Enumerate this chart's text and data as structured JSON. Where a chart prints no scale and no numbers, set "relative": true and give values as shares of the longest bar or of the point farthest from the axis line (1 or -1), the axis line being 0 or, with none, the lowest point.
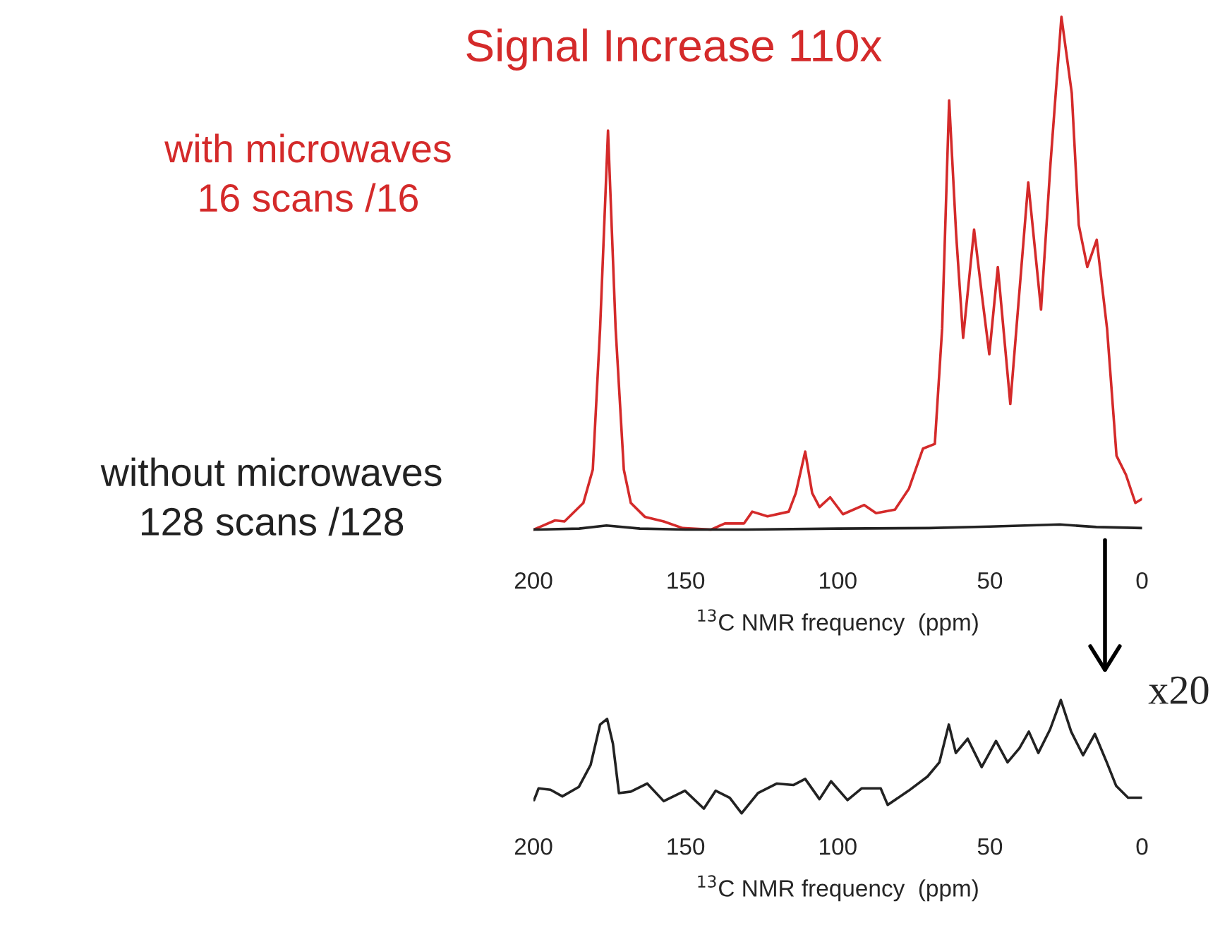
{
  "chart_data": [
    {
      "type": "line",
      "title": "Signal Increase 110x",
      "xlabel": "$^{13}$C NMR frequency  (ppm)",
      "relative": true,
      "xlim": [
        200,
        0
      ],
      "xticks": [
        200,
        150,
        100,
        50,
        0
      ],
      "tick_labels": "x",
      "grid": false,
      "legend": false,
      "series": [
        {
          "name": "with microwaves\n16 scans /16",
          "color": "#d42a2a",
          "x": [
            199.9,
            192.9,
            189.8,
            183.6,
            180.5,
            178.1,
            175.5,
            173.0,
            170.3,
            168.0,
            163.4,
            157.2,
            151.0,
            141.7,
            137.1,
            130.8,
            128.1,
            123.1,
            116.1,
            113.8,
            110.7,
            108.4,
            106.0,
            102.5,
            98.3,
            91.3,
            87.4,
            81.2,
            76.6,
            72.0,
            68.1,
            65.7,
            63.4,
            61.1,
            58.8,
            55.2,
            52.6,
            50.2,
            47.4,
            43.3,
            37.4,
            33.2,
            30.1,
            26.5,
            23.1,
            20.8,
            18.0,
            14.9,
            11.5,
            8.4,
            5.3,
            2.2,
            0
          ],
          "values": [
            0,
            0.018,
            0.016,
            0.052,
            0.117,
            0.392,
            0.778,
            0.392,
            0.117,
            0.052,
            0.025,
            0.016,
            0.003,
            0,
            0.012,
            0.012,
            0.035,
            0.026,
            0.035,
            0.071,
            0.152,
            0.071,
            0.044,
            0.063,
            0.03,
            0.048,
            0.032,
            0.039,
            0.08,
            0.158,
            0.167,
            0.392,
            0.837,
            0.576,
            0.374,
            0.585,
            0.456,
            0.342,
            0.512,
            0.245,
            0.677,
            0.429,
            0.713,
            1.0,
            0.851,
            0.594,
            0.512,
            0.565,
            0.392,
            0.144,
            0.107,
            0.052,
            0.06
          ]
        },
        {
          "name": "without microwaves\n128 scans /128",
          "color": "#222222",
          "x": [
            199.9,
            185,
            176,
            165,
            150,
            130,
            100,
            70,
            50,
            27,
            15,
            0
          ],
          "values": [
            0,
            0.002,
            0.008,
            0.002,
            0.0,
            0.0,
            0.002,
            0.003,
            0.006,
            0.01,
            0.005,
            0.003
          ]
        }
      ]
    },
    {
      "type": "line",
      "xlabel": "$^{13}$C NMR frequency  (ppm)",
      "relative": true,
      "xlim": [
        200,
        0
      ],
      "xticks": [
        200,
        150,
        100,
        50,
        0
      ],
      "tick_labels": "x",
      "grid": false,
      "legend": false,
      "annotations": [
        "x20"
      ],
      "series": [
        {
          "color": "#222222",
          "x": [
            199.8,
            198.3,
            194.4,
            190.5,
            185.1,
            181.2,
            178.1,
            175.8,
            173.9,
            171.9,
            168.0,
            162.6,
            157.2,
            150.2,
            144.0,
            140.1,
            135.5,
            131.6,
            126.2,
            120.0,
            114.6,
            110.7,
            106.0,
            102.2,
            96.8,
            92.1,
            85.9,
            83.6,
            76.7,
            70.5,
            66.6,
            63.5,
            61.2,
            57.3,
            52.7,
            48.0,
            44.2,
            40.3,
            37.2,
            34.1,
            30.2,
            26.7,
            23.3,
            19.4,
            15.5,
            11.6,
            8.5,
            4.6,
            2.3,
            0
          ],
          "values": [
            0.117,
            0.221,
            0.208,
            0.15,
            0.233,
            0.429,
            0.783,
            0.833,
            0.617,
            0.179,
            0.192,
            0.263,
            0.108,
            0.2,
            0.042,
            0.2,
            0.138,
            0,
            0.179,
            0.263,
            0.25,
            0.304,
            0.125,
            0.283,
            0.117,
            0.221,
            0.221,
            0.075,
            0.2,
            0.325,
            0.45,
            0.783,
            0.533,
            0.658,
            0.408,
            0.638,
            0.45,
            0.575,
            0.721,
            0.533,
            0.742,
            1.0,
            0.721,
            0.513,
            0.7,
            0.45,
            0.242,
            0.138,
            0.138,
            0.138
          ]
        }
      ]
    }
  ]
}
